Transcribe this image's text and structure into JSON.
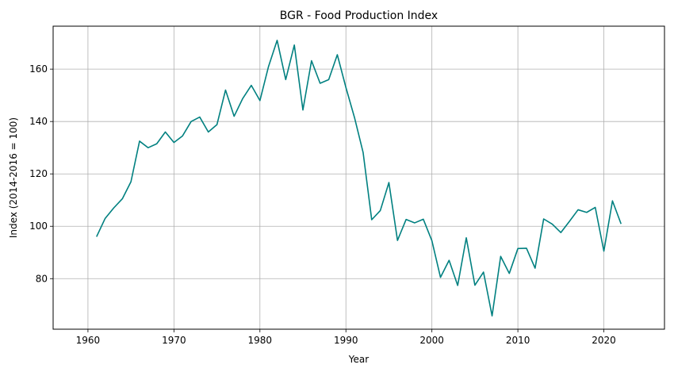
{
  "chart_data": {
    "type": "line",
    "title": "BGR - Food Production Index",
    "xlabel": "Year",
    "ylabel": "Index (2014-2016 = 100)",
    "xlim": [
      1955.95,
      2027.05
    ],
    "ylim": [
      60.7,
      176.4
    ],
    "xticks": [
      1960,
      1970,
      1980,
      1990,
      2000,
      2010,
      2020
    ],
    "yticks": [
      80,
      100,
      120,
      140,
      160
    ],
    "grid": true,
    "legend": "none",
    "series": [
      {
        "color": "#008080",
        "x": [
          1961,
          1962,
          1963,
          1964,
          1965,
          1966,
          1967,
          1968,
          1969,
          1970,
          1971,
          1972,
          1973,
          1974,
          1975,
          1976,
          1977,
          1978,
          1979,
          1980,
          1981,
          1982,
          1983,
          1984,
          1985,
          1986,
          1987,
          1988,
          1989,
          1990,
          1991,
          1992,
          1993,
          1994,
          1995,
          1996,
          1997,
          1998,
          1999,
          2000,
          2001,
          2002,
          2003,
          2004,
          2005,
          2006,
          2007,
          2008,
          2009,
          2010,
          2011,
          2012,
          2013,
          2014,
          2015,
          2016,
          2017,
          2018,
          2019,
          2020,
          2021,
          2022
        ],
        "values": [
          96,
          103,
          107,
          110.5,
          117,
          132.5,
          130,
          131.5,
          136,
          132,
          134.5,
          140,
          141.7,
          136,
          138.8,
          152,
          142,
          148.8,
          153.8,
          148,
          161,
          171,
          156,
          169.2,
          144.4,
          163.2,
          154.6,
          156,
          165.5,
          153,
          141.5,
          128.2,
          102.5,
          106,
          116.7,
          94.6,
          102.6,
          101.3,
          102.7,
          94.5,
          80.5,
          87,
          77.4,
          95.6,
          77.5,
          82.5,
          65.8,
          88.5,
          82,
          91.5,
          91.6,
          84,
          102.8,
          100.8,
          97.6,
          101.9,
          106.3,
          105.3,
          107.2,
          90.5,
          109.7,
          100.9
        ]
      }
    ]
  }
}
